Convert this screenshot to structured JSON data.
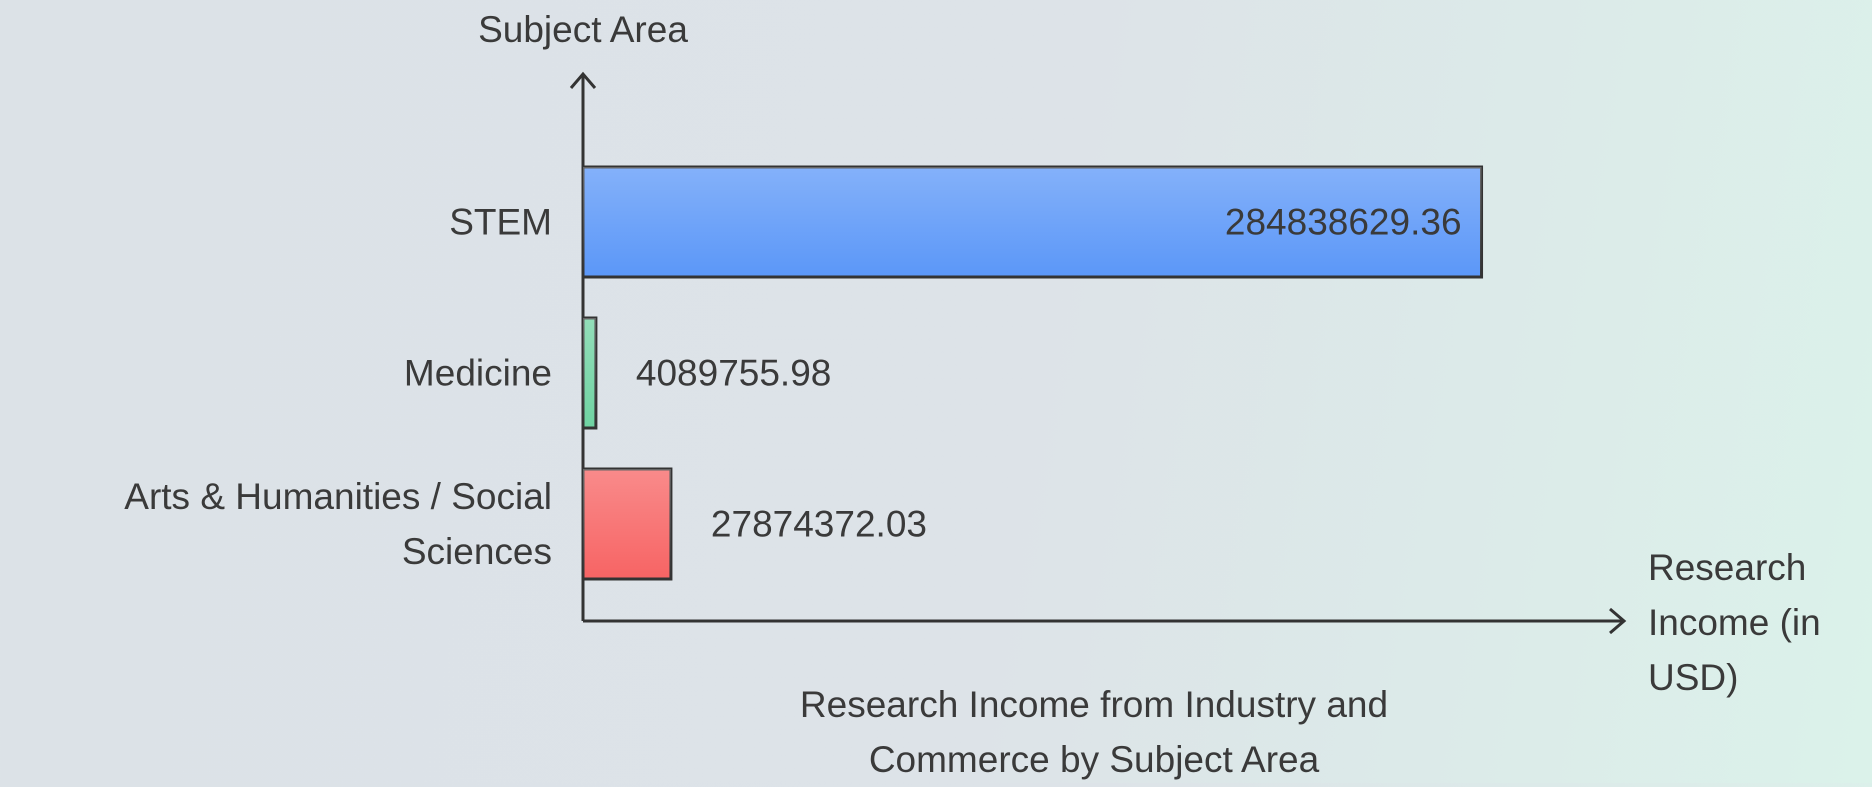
{
  "chart_data": {
    "type": "bar",
    "orientation": "horizontal",
    "title": "Research Income from Industry and Commerce by Subject Area",
    "y_label": "Subject Area",
    "x_label": "Research Income (in USD)",
    "categories": [
      "STEM",
      "Medicine",
      "Arts & Humanities / Social Sciences"
    ],
    "values": [
      284838629.36,
      4089755.98,
      27874372.03
    ],
    "colors": [
      "#5b97f8",
      "#6fd3a2",
      "#f76464"
    ],
    "xlim": [
      0,
      330000000
    ]
  }
}
